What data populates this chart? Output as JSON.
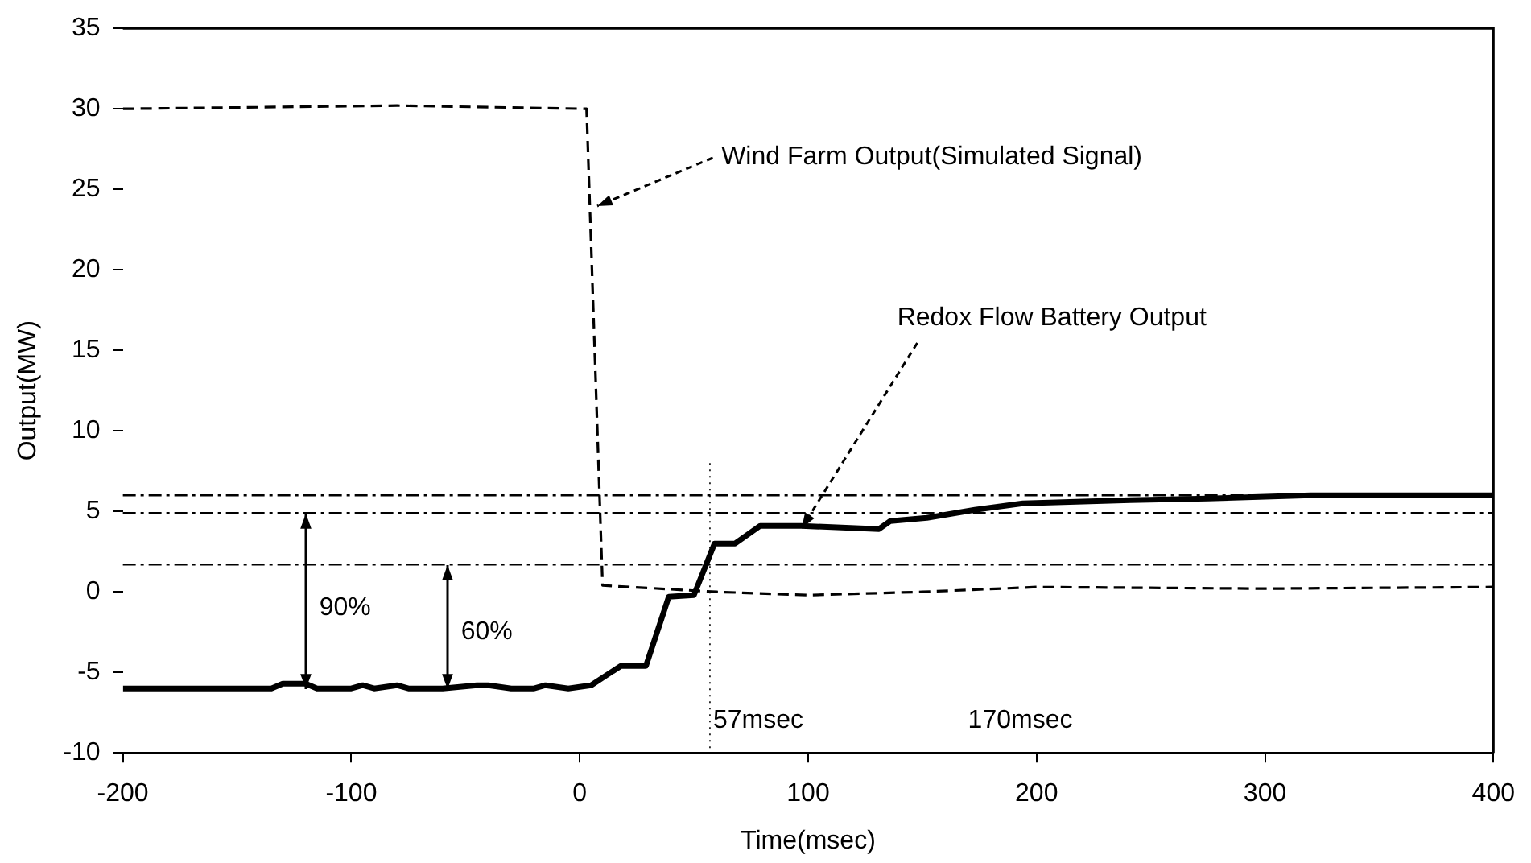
{
  "chart_data": {
    "type": "line",
    "xlabel": "Time(msec)",
    "ylabel": "Output(MW)",
    "xlim": [
      -200,
      400
    ],
    "xticks": [
      -200,
      -100,
      0,
      100,
      200,
      300,
      400
    ],
    "ylim": [
      -10,
      35
    ],
    "yticks": [
      -10,
      -5,
      0,
      5,
      10,
      15,
      20,
      25,
      30,
      35
    ],
    "grid": false,
    "legend": false,
    "marker": "none",
    "series": [
      {
        "name": null,
        "color": "#000000",
        "line_style": "dashed",
        "x": [
          -200,
          -80,
          3,
          10,
          60,
          100,
          150,
          200,
          300,
          400
        ],
        "values": [
          30,
          30.2,
          30,
          0.4,
          0,
          -0.2,
          0,
          0.3,
          0.2,
          0.3
        ]
      },
      {
        "name": null,
        "color": "#000000",
        "line_style": "solid",
        "x": [
          -200,
          -135,
          -130,
          -120,
          -115,
          -100,
          -95,
          -90,
          -80,
          -75,
          -60,
          -45,
          -40,
          -30,
          -20,
          -15,
          -5,
          5,
          18,
          29,
          39,
          50,
          59,
          68,
          79,
          97,
          131,
          136,
          152,
          173,
          194,
          241,
          275,
          320,
          400
        ],
        "values": [
          -6,
          -6,
          -5.7,
          -5.7,
          -6,
          -6,
          -5.8,
          -6,
          -5.8,
          -6,
          -6,
          -5.8,
          -5.8,
          -6,
          -6,
          -5.8,
          -6,
          -5.8,
          -4.6,
          -4.6,
          -0.3,
          -0.2,
          3,
          3,
          4.1,
          4.1,
          3.9,
          4.4,
          4.6,
          5.1,
          5.5,
          5.7,
          5.8,
          6,
          6
        ]
      }
    ],
    "ref_lines": [
      {
        "axis": "y",
        "value": 6,
        "line_style": "dashdot"
      },
      {
        "axis": "y",
        "value": 4.9,
        "line_style": "dashdot"
      },
      {
        "axis": "y",
        "value": 1.7,
        "line_style": "dashdot"
      },
      {
        "axis": "x",
        "value": 57,
        "label": "57msec",
        "line_style": "dotted"
      }
    ],
    "annotations": [
      {
        "text": "Wind Farm Output(Simulated Signal)",
        "x": 8,
        "y": 24
      },
      {
        "text": "Redox Flow Battery Output",
        "x": 97,
        "y": 4
      },
      "90%",
      "60%",
      "170msec"
    ]
  }
}
